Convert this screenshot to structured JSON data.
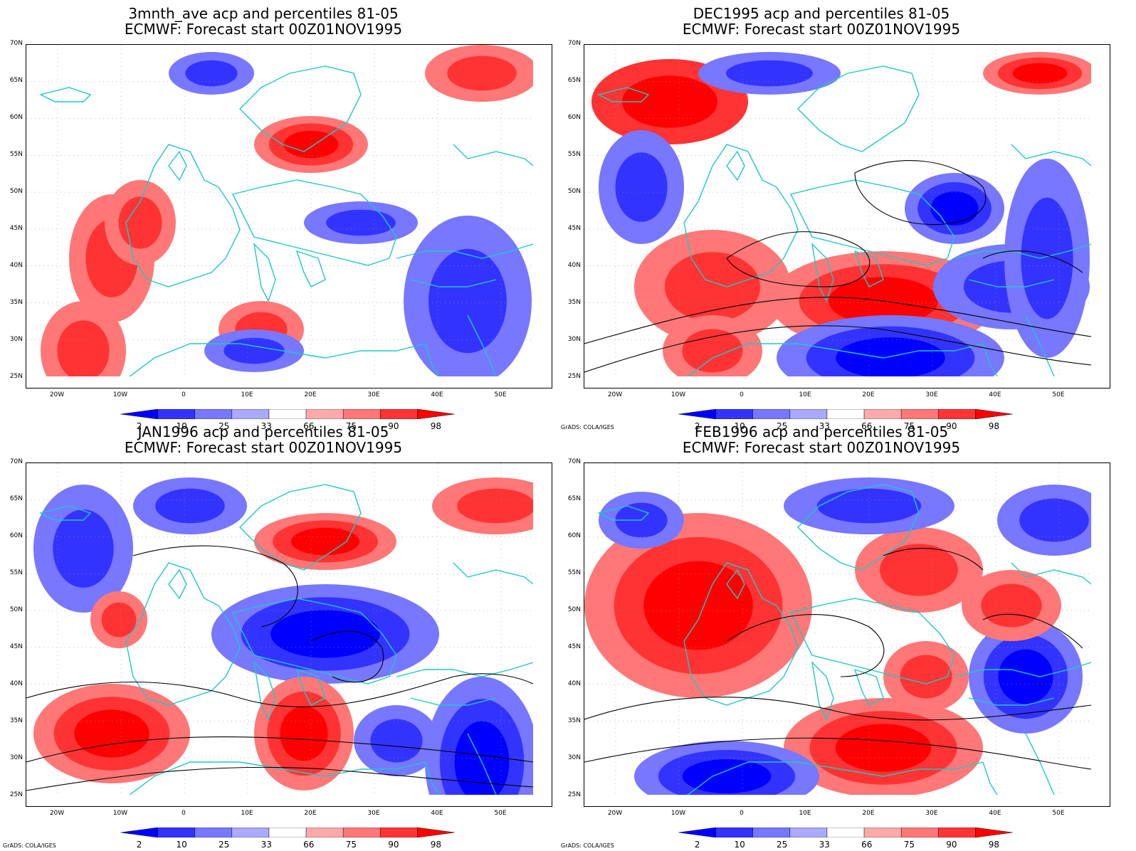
{
  "panels": [
    {
      "title_line1": "3mnth_ave acp and percentiles 81-05",
      "title_line2": "ECMWF: Forecast start 00Z01NOV1995",
      "credit": ""
    },
    {
      "title_line1": "DEC1995 acp and percentiles 81-05",
      "title_line2": "ECMWF: Forecast start 00Z01NOV1995",
      "credit": "GrADS: COLA/IGES"
    },
    {
      "title_line1": "JAN1996 acp and percentiles 81-05",
      "title_line2": "ECMWF: Forecast start 00Z01NOV1995",
      "credit": "GrADS: COLA/IGES"
    },
    {
      "title_line1": "FEB1996 acp and percentiles 81-05",
      "title_line2": "ECMWF: Forecast start 00Z01NOV1995",
      "credit": "GrADS: COLA/IGES"
    }
  ],
  "lat_labels": [
    "70N",
    "65N",
    "60N",
    "55N",
    "50N",
    "45N",
    "40N",
    "35N",
    "30N",
    "25N"
  ],
  "lon_labels": [
    "20W",
    "10W",
    "0",
    "10E",
    "20E",
    "30E",
    "40E",
    "50E"
  ],
  "colorbar": {
    "labels": [
      "2",
      "10",
      "25",
      "33",
      "66",
      "75",
      "90",
      "98"
    ],
    "colors": [
      "#0000ff",
      "#3333ff",
      "#7777ff",
      "#aaaaff",
      "#ffffff",
      "#ffaaaa",
      "#ff7777",
      "#ff3333",
      "#ff0000"
    ]
  },
  "map_style": {
    "coast_color": "#1ec8c8",
    "contour_color": "#000000"
  }
}
